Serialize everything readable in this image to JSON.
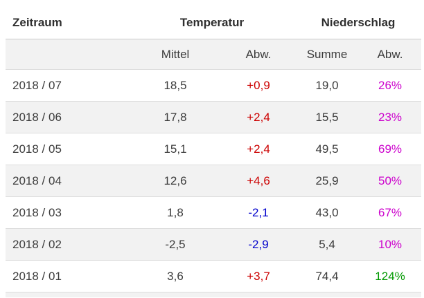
{
  "table": {
    "header": {
      "zeitraum": "Zeitraum",
      "temperatur": "Temperatur",
      "niederschlag": "Niederschlag"
    },
    "subheader": {
      "mittel": "Mittel",
      "temp_abw": "Abw.",
      "summe": "Summe",
      "nied_abw": "Abw."
    },
    "colors": {
      "positive_red": "#cc0000",
      "negative_blue": "#0000cc",
      "percent_magenta": "#cc00cc",
      "percent_green": "#009900",
      "alt_row_bg": "#f2f2f2"
    },
    "rows": [
      {
        "zeitraum": "2018 / 07",
        "mittel": "18,5",
        "temp_abw": "+0,9",
        "summe": "19,0",
        "nied_abw": "26%"
      },
      {
        "zeitraum": "2018 / 06",
        "mittel": "17,8",
        "temp_abw": "+2,4",
        "summe": "15,5",
        "nied_abw": "23%"
      },
      {
        "zeitraum": "2018 / 05",
        "mittel": "15,1",
        "temp_abw": "+2,4",
        "summe": "49,5",
        "nied_abw": "69%"
      },
      {
        "zeitraum": "2018 / 04",
        "mittel": "12,6",
        "temp_abw": "+4,6",
        "summe": "25,9",
        "nied_abw": "50%"
      },
      {
        "zeitraum": "2018 / 03",
        "mittel": "1,8",
        "temp_abw": "-2,1",
        "summe": "43,0",
        "nied_abw": "67%"
      },
      {
        "zeitraum": "2018 / 02",
        "mittel": "-2,5",
        "temp_abw": "-2,9",
        "summe": "5,4",
        "nied_abw": "10%"
      },
      {
        "zeitraum": "2018 / 01",
        "mittel": "3,6",
        "temp_abw": "+3,7",
        "summe": "74,4",
        "nied_abw": "124%"
      }
    ]
  }
}
